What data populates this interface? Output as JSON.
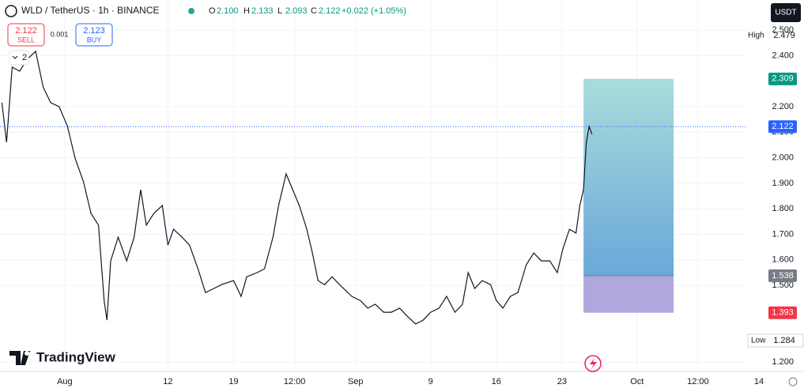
{
  "header": {
    "symbol": "WLD / TetherUS · 1h · BINANCE",
    "ohlc": [
      {
        "key": "O",
        "value": "2.100"
      },
      {
        "key": "H",
        "value": "2.133"
      },
      {
        "key": "L",
        "value": "2.093"
      },
      {
        "key": "C",
        "value": "2.122"
      }
    ],
    "change": "+0.022 (+1.05%)",
    "sell_price": "2.122",
    "sell_label": "SELL",
    "spread": "0.001",
    "buy_price": "2.123",
    "buy_label": "BUY",
    "indicator_count": "2",
    "currency": "USDT",
    "brand": "TradingView"
  },
  "chart_data": {
    "type": "line",
    "color": "#131722",
    "x": [
      -6.7,
      -6.2,
      -5.6,
      -4.8,
      -4.0,
      -3.1,
      -2.3,
      -1.5,
      -0.6,
      0.3,
      1.1,
      2.0,
      2.8,
      3.6,
      4.2,
      4.5,
      4.9,
      5.7,
      6.6,
      7.4,
      8.1,
      8.7,
      9.5,
      10.4,
      11.0,
      11.6,
      12.5,
      13.3,
      14.2,
      15.0,
      15.9,
      16.7,
      18.0,
      18.8,
      19.4,
      20.5,
      21.3,
      22.2,
      22.8,
      23.6,
      24.3,
      25.0,
      25.8,
      26.4,
      27.0,
      27.7,
      28.5,
      29.3,
      30.6,
      31.5,
      32.3,
      33.1,
      34.0,
      34.8,
      35.7,
      36.5,
      37.4,
      38.2,
      39.0,
      39.9,
      40.7,
      41.6,
      42.4,
      43.0,
      43.7,
      44.5,
      45.4,
      46.0,
      46.7,
      47.5,
      48.3,
      49.2,
      50.0,
      50.8,
      51.7,
      52.5,
      53.1,
      53.8,
      54.5,
      54.9,
      55.3,
      55.6,
      55.9,
      56.2
    ],
    "values": [
      2.216,
      2.061,
      2.355,
      2.339,
      2.386,
      2.417,
      2.277,
      2.216,
      2.2,
      2.123,
      1.999,
      1.906,
      1.782,
      1.736,
      1.441,
      1.364,
      1.596,
      1.689,
      1.596,
      1.689,
      1.875,
      1.736,
      1.782,
      1.813,
      1.658,
      1.72,
      1.689,
      1.658,
      1.565,
      1.472,
      1.488,
      1.503,
      1.519,
      1.457,
      1.534,
      1.55,
      1.565,
      1.689,
      1.813,
      1.937,
      1.875,
      1.813,
      1.72,
      1.627,
      1.519,
      1.503,
      1.534,
      1.503,
      1.457,
      1.441,
      1.411,
      1.426,
      1.395,
      1.395,
      1.411,
      1.38,
      1.349,
      1.364,
      1.395,
      1.411,
      1.457,
      1.395,
      1.426,
      1.55,
      1.488,
      1.519,
      1.503,
      1.441,
      1.411,
      1.457,
      1.472,
      1.581,
      1.627,
      1.596,
      1.596,
      1.55,
      1.643,
      1.72,
      1.705,
      1.813,
      1.875,
      2.061,
      2.123,
      2.092
    ],
    "xlim": [
      -6.9,
      78.8
    ],
    "xticks": [
      {
        "value": 0,
        "label": "Aug"
      },
      {
        "value": 11,
        "label": "12"
      },
      {
        "value": 18,
        "label": "19"
      },
      {
        "value": 24.5,
        "label": "12:00"
      },
      {
        "value": 31,
        "label": "Sep"
      },
      {
        "value": 39,
        "label": "9"
      },
      {
        "value": 46,
        "label": "16"
      },
      {
        "value": 53,
        "label": "23"
      },
      {
        "value": 61,
        "label": "Oct"
      },
      {
        "value": 67.5,
        "label": "12:00"
      },
      {
        "value": 74,
        "label": "14"
      }
    ],
    "ylim": [
      1.163,
      2.618
    ],
    "yticks": [
      {
        "value": 2.5,
        "label": "2.500"
      },
      {
        "value": 2.4,
        "label": "2.400"
      },
      {
        "value": 2.2,
        "label": "2.200"
      },
      {
        "value": 2.1,
        "label": "2.100"
      },
      {
        "value": 2.0,
        "label": "2.000"
      },
      {
        "value": 1.9,
        "label": "1.900"
      },
      {
        "value": 1.8,
        "label": "1.800"
      },
      {
        "value": 1.7,
        "label": "1.700"
      },
      {
        "value": 1.6,
        "label": "1.600"
      },
      {
        "value": 1.5,
        "label": "1.500"
      },
      {
        "value": 1.2,
        "label": "1.200"
      }
    ],
    "grid": true,
    "last_price": 2.122,
    "last_color": "#2962ff",
    "high_label": "High",
    "high": 2.479,
    "low_label": "Low",
    "low": 1.284,
    "position": {
      "start": 55.3,
      "end": 64.9,
      "target": 2.309,
      "entry": 1.538,
      "stop": 1.393,
      "target_color": "#089981",
      "entry_color": "#787b86",
      "stop_color": "#f23645"
    }
  }
}
